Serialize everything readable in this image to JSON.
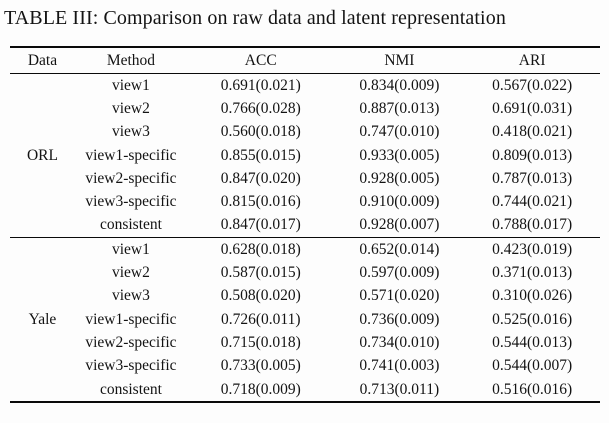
{
  "title": "TABLE III: Comparison on raw data and latent representation",
  "table": {
    "headers": [
      "Data",
      "Method",
      "ACC",
      "NMI",
      "ARI"
    ],
    "groups": [
      {
        "data": "ORL",
        "rows": [
          {
            "method": "view1",
            "acc": "0.691(0.021)",
            "nmi": "0.834(0.009)",
            "ari": "0.567(0.022)"
          },
          {
            "method": "view2",
            "acc": "0.766(0.028)",
            "nmi": "0.887(0.013)",
            "ari": "0.691(0.031)"
          },
          {
            "method": "view3",
            "acc": "0.560(0.018)",
            "nmi": "0.747(0.010)",
            "ari": "0.418(0.021)"
          },
          {
            "method": "view1-specific",
            "acc": "0.855(0.015)",
            "nmi": "0.933(0.005)",
            "ari": "0.809(0.013)"
          },
          {
            "method": "view2-specific",
            "acc": "0.847(0.020)",
            "nmi": "0.928(0.005)",
            "ari": "0.787(0.013)"
          },
          {
            "method": "view3-specific",
            "acc": "0.815(0.016)",
            "nmi": "0.910(0.009)",
            "ari": "0.744(0.021)"
          },
          {
            "method": "consistent",
            "acc": "0.847(0.017)",
            "nmi": "0.928(0.007)",
            "ari": "0.788(0.017)"
          }
        ]
      },
      {
        "data": "Yale",
        "rows": [
          {
            "method": "view1",
            "acc": "0.628(0.018)",
            "nmi": "0.652(0.014)",
            "ari": "0.423(0.019)"
          },
          {
            "method": "view2",
            "acc": "0.587(0.015)",
            "nmi": "0.597(0.009)",
            "ari": "0.371(0.013)"
          },
          {
            "method": "view3",
            "acc": "0.508(0.020)",
            "nmi": "0.571(0.020)",
            "ari": "0.310(0.026)"
          },
          {
            "method": "view1-specific",
            "acc": "0.726(0.011)",
            "nmi": "0.736(0.009)",
            "ari": "0.525(0.016)"
          },
          {
            "method": "view2-specific",
            "acc": "0.715(0.018)",
            "nmi": "0.734(0.010)",
            "ari": "0.544(0.013)"
          },
          {
            "method": "view3-specific",
            "acc": "0.733(0.005)",
            "nmi": "0.741(0.003)",
            "ari": "0.544(0.007)"
          },
          {
            "method": "consistent",
            "acc": "0.718(0.009)",
            "nmi": "0.713(0.011)",
            "ari": "0.516(0.016)"
          }
        ]
      }
    ]
  }
}
